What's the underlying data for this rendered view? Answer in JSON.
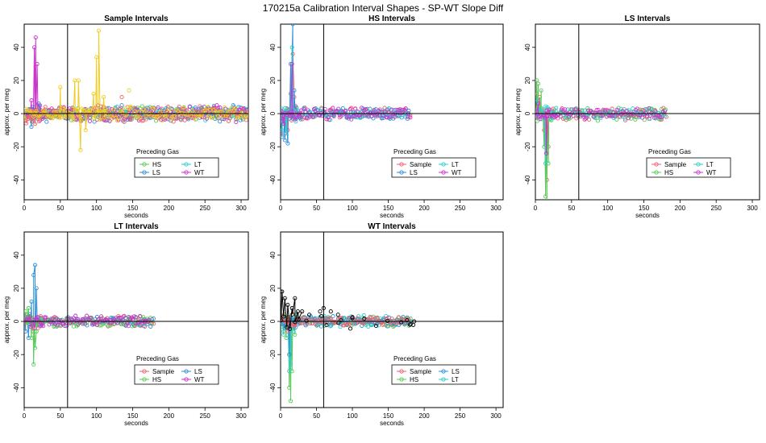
{
  "figure": {
    "title": "170215a   Calibration Interval Shapes - SP-WT Slope Diff"
  },
  "colors": {
    "Sample": "#f0606a",
    "HS": "#55cc55",
    "LS": "#2f8fd8",
    "LT": "#33cccc",
    "WT": "#cc33cc",
    "other_yellow": "#eecc22",
    "black": "#000000"
  },
  "chart_data": [
    {
      "type": "scatter",
      "title": "Sample Intervals",
      "xlabel": "seconds",
      "ylabel": "approx. per meg",
      "xlim": [
        0,
        310
      ],
      "ylim": [
        -52,
        54
      ],
      "xticks": [
        0,
        50,
        100,
        150,
        200,
        250,
        300
      ],
      "yticks": [
        -40,
        -20,
        0,
        20,
        40
      ],
      "vline": 60,
      "hline": 0,
      "legend_title": "Preceding Gas",
      "legend": [
        "HS",
        "LT",
        "LS",
        "WT"
      ],
      "series": [
        {
          "name": "HS",
          "color_key": "HS",
          "x_end": 310,
          "noise": 3,
          "seed": 11,
          "spikes": [
            [
              55,
              1
            ],
            [
              110,
              4
            ],
            [
              160,
              3
            ]
          ]
        },
        {
          "name": "LS",
          "color_key": "LS",
          "x_end": 310,
          "noise": 3.5,
          "seed": 12,
          "spikes": [
            [
              10,
              -8
            ],
            [
              20,
              6
            ]
          ]
        },
        {
          "name": "LT",
          "color_key": "LT",
          "x_end": 310,
          "noise": 3,
          "seed": 13,
          "spikes": []
        },
        {
          "name": "WT",
          "color_key": "WT",
          "x_end": 310,
          "noise": 3.5,
          "seed": 14,
          "spikes": [
            [
              10,
              8
            ],
            [
              14,
              40
            ],
            [
              16,
              46
            ],
            [
              18,
              30
            ],
            [
              22,
              -4
            ]
          ]
        },
        {
          "name": "",
          "color_key": "Sample",
          "x_end": 310,
          "noise": 3.5,
          "seed": 15,
          "spikes": [
            [
              110,
              4
            ],
            [
              135,
              10
            ]
          ]
        },
        {
          "name": "",
          "color_key": "other_yellow",
          "x_end": 310,
          "noise": 3,
          "seed": 16,
          "spikes": [
            [
              50,
              16
            ],
            [
              70,
              20
            ],
            [
              75,
              20
            ],
            [
              78,
              -22
            ],
            [
              85,
              -10
            ],
            [
              96,
              12
            ],
            [
              100,
              34
            ],
            [
              103,
              50
            ],
            [
              110,
              10
            ],
            [
              145,
              14
            ]
          ]
        }
      ]
    },
    {
      "type": "scatter",
      "title": "HS Intervals",
      "xlabel": "seconds",
      "ylabel": "approx. per meg",
      "xlim": [
        0,
        310
      ],
      "ylim": [
        -52,
        54
      ],
      "xticks": [
        0,
        50,
        100,
        150,
        200,
        250,
        300
      ],
      "yticks": [
        -40,
        -20,
        0,
        20,
        40
      ],
      "vline": 60,
      "hline": 0,
      "legend_title": "Preceding Gas",
      "legend": [
        "Sample",
        "LT",
        "LS",
        "WT"
      ],
      "series": [
        {
          "name": "Sample",
          "color_key": "Sample",
          "x_end": 180,
          "noise": 3,
          "seed": 21,
          "spikes": [
            [
              2,
              -5
            ],
            [
              6,
              -12
            ],
            [
              10,
              -10
            ],
            [
              14,
              12
            ],
            [
              17,
              36
            ],
            [
              19,
              10
            ]
          ]
        },
        {
          "name": "LS",
          "color_key": "LS",
          "x_end": 178,
          "noise": 3,
          "seed": 22,
          "spikes": [
            [
              2,
              -14
            ],
            [
              6,
              -16
            ],
            [
              10,
              -18
            ],
            [
              14,
              30
            ],
            [
              17,
              54
            ],
            [
              19,
              14
            ]
          ]
        },
        {
          "name": "LT",
          "color_key": "LT",
          "x_end": 178,
          "noise": 2.5,
          "seed": 23,
          "spikes": [
            [
              2,
              -10
            ],
            [
              8,
              -12
            ],
            [
              16,
              40
            ]
          ]
        },
        {
          "name": "WT",
          "color_key": "WT",
          "x_end": 180,
          "noise": 2.5,
          "seed": 24,
          "spikes": [
            [
              4,
              -6
            ],
            [
              16,
              30
            ]
          ]
        }
      ]
    },
    {
      "type": "scatter",
      "title": "LS Intervals",
      "xlabel": "seconds",
      "ylabel": "approx. per meg",
      "xlim": [
        0,
        310
      ],
      "ylim": [
        -52,
        54
      ],
      "xticks": [
        0,
        50,
        100,
        150,
        200,
        250,
        300
      ],
      "yticks": [
        -40,
        -20,
        0,
        20,
        40
      ],
      "vline": 60,
      "hline": 0,
      "legend_title": "Preceding Gas",
      "legend": [
        "Sample",
        "LT",
        "HS",
        "WT"
      ],
      "series": [
        {
          "name": "Sample",
          "color_key": "Sample",
          "x_end": 180,
          "noise": 3,
          "seed": 31,
          "spikes": [
            [
              2,
              12
            ],
            [
              6,
              10
            ],
            [
              12,
              -10
            ],
            [
              16,
              -40
            ],
            [
              18,
              -20
            ]
          ]
        },
        {
          "name": "HS",
          "color_key": "HS",
          "x_end": 180,
          "noise": 3,
          "seed": 32,
          "spikes": [
            [
              2,
              20
            ],
            [
              4,
              18
            ],
            [
              8,
              14
            ],
            [
              12,
              -20
            ],
            [
              14,
              -50
            ],
            [
              16,
              -54
            ],
            [
              18,
              -30
            ],
            [
              22,
              -4
            ]
          ]
        },
        {
          "name": "LT",
          "color_key": "LT",
          "x_end": 178,
          "noise": 2.5,
          "seed": 33,
          "spikes": [
            [
              3,
              8
            ],
            [
              14,
              -30
            ]
          ]
        },
        {
          "name": "WT",
          "color_key": "WT",
          "x_end": 178,
          "noise": 2.5,
          "seed": 34,
          "spikes": [
            [
              4,
              6
            ],
            [
              15,
              -24
            ]
          ]
        }
      ]
    },
    {
      "type": "scatter",
      "title": "LT Intervals",
      "xlabel": "seconds",
      "ylabel": "approx. per meg",
      "xlim": [
        0,
        310
      ],
      "ylim": [
        -52,
        54
      ],
      "xticks": [
        0,
        50,
        100,
        150,
        200,
        250,
        300
      ],
      "yticks": [
        -40,
        -20,
        0,
        20,
        40
      ],
      "vline": 60,
      "hline": 0,
      "legend_title": "Preceding Gas",
      "legend": [
        "Sample",
        "LS",
        "HS",
        "WT"
      ],
      "series": [
        {
          "name": "Sample",
          "color_key": "Sample",
          "x_end": 178,
          "noise": 2.5,
          "seed": 41,
          "spikes": [
            [
              4,
              4
            ],
            [
              12,
              -6
            ]
          ]
        },
        {
          "name": "LS",
          "color_key": "LS",
          "x_end": 178,
          "noise": 2.5,
          "seed": 42,
          "spikes": [
            [
              2,
              -6
            ],
            [
              6,
              -10
            ],
            [
              10,
              12
            ],
            [
              13,
              28
            ],
            [
              15,
              34
            ],
            [
              17,
              20
            ]
          ]
        },
        {
          "name": "HS",
          "color_key": "HS",
          "x_end": 176,
          "noise": 2.5,
          "seed": 43,
          "spikes": [
            [
              2,
              6
            ],
            [
              6,
              8
            ],
            [
              10,
              -10
            ],
            [
              13,
              -26
            ],
            [
              15,
              -16
            ],
            [
              17,
              -6
            ]
          ]
        },
        {
          "name": "WT",
          "color_key": "WT",
          "x_end": 172,
          "noise": 2.5,
          "seed": 44,
          "spikes": [
            [
              8,
              3
            ]
          ]
        }
      ]
    },
    {
      "type": "scatter",
      "title": "WT Intervals",
      "xlabel": "seconds",
      "ylabel": "approx. per meg",
      "xlim": [
        0,
        310
      ],
      "ylim": [
        -52,
        54
      ],
      "xticks": [
        0,
        50,
        100,
        150,
        200,
        250,
        300
      ],
      "yticks": [
        -40,
        -20,
        0,
        20,
        40
      ],
      "vline": 60,
      "hline": 0,
      "legend_title": "Preceding Gas",
      "legend": [
        "Sample",
        "LS",
        "HS",
        "LT"
      ],
      "series": [
        {
          "name": "HS",
          "color_key": "HS",
          "x_end": 180,
          "noise": 2.5,
          "seed": 51,
          "spikes": [
            [
              4,
              -6
            ],
            [
              8,
              -10
            ],
            [
              12,
              -40
            ],
            [
              14,
              -48
            ],
            [
              16,
              -30
            ],
            [
              20,
              -8
            ]
          ]
        },
        {
          "name": "LT",
          "color_key": "LT",
          "x_end": 180,
          "noise": 2.5,
          "seed": 52,
          "spikes": [
            [
              4,
              -8
            ],
            [
              8,
              -4
            ],
            [
              12,
              -30
            ],
            [
              14,
              -26
            ],
            [
              18,
              -6
            ]
          ]
        },
        {
          "name": "LS",
          "color_key": "LS",
          "x_end": 178,
          "noise": 2.5,
          "seed": 53,
          "spikes": [
            [
              6,
              -4
            ],
            [
              12,
              -20
            ]
          ]
        },
        {
          "name": "Sample",
          "color_key": "Sample",
          "x_end": 178,
          "noise": 2,
          "seed": 54,
          "spikes": [
            [
              10,
              -6
            ]
          ]
        },
        {
          "name": "",
          "color_key": "black",
          "x_end": 188,
          "noise": 4,
          "seed": 55,
          "sparse": true,
          "spikes": [
            [
              0,
              18
            ],
            [
              2,
              18
            ],
            [
              6,
              14
            ],
            [
              10,
              10
            ],
            [
              16,
              8
            ],
            [
              20,
              14
            ],
            [
              24,
              6
            ],
            [
              30,
              6
            ],
            [
              40,
              4
            ],
            [
              55,
              6
            ],
            [
              60,
              8
            ],
            [
              70,
              6
            ],
            [
              80,
              4
            ],
            [
              100,
              2
            ],
            [
              180,
              -2
            ],
            [
              186,
              0
            ]
          ]
        }
      ]
    }
  ]
}
